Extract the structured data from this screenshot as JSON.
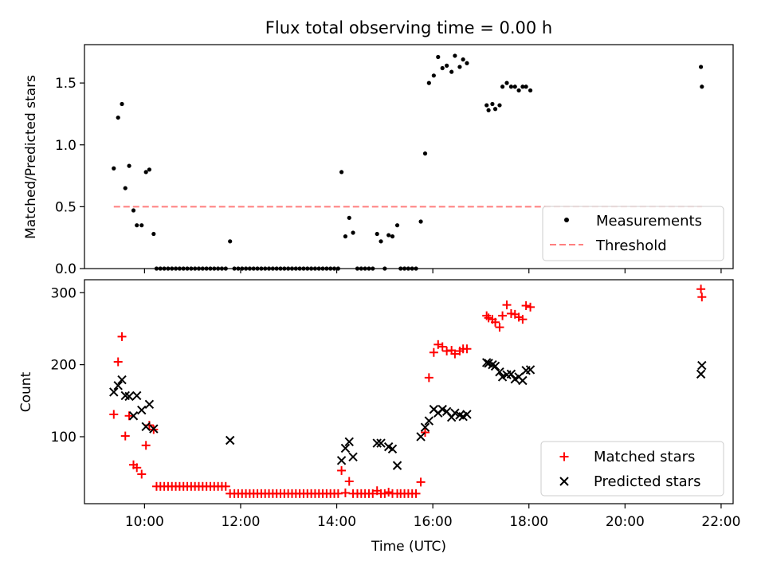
{
  "chart_data": [
    {
      "type": "scatter",
      "title": "Flux total observing time = 0.00 h",
      "xlabel": "",
      "ylabel": "Matched/Predicted stars",
      "xlim": [
        8.75,
        22.25
      ],
      "ylim": [
        0,
        1.81
      ],
      "yticks": [
        0.0,
        0.5,
        1.0,
        1.5
      ],
      "ytick_labels": [
        "0.0",
        "0.5",
        "1.0",
        "1.5"
      ],
      "xticks": [
        10,
        12,
        14,
        16,
        18,
        20,
        22
      ],
      "legend": {
        "position": "lower-right",
        "entries": [
          "Measurements",
          "Threshold"
        ]
      },
      "series": [
        {
          "name": "Measurements",
          "marker": "dot",
          "color": "#000000",
          "points": [
            [
              9.36,
              0.81
            ],
            [
              9.45,
              1.22
            ],
            [
              9.53,
              1.33
            ],
            [
              9.6,
              0.65
            ],
            [
              9.68,
              0.83
            ],
            [
              9.77,
              0.47
            ],
            [
              9.84,
              0.35
            ],
            [
              9.94,
              0.35
            ],
            [
              10.03,
              0.78
            ],
            [
              10.1,
              0.8
            ],
            [
              10.19,
              0.28
            ],
            [
              10.25,
              0.0
            ],
            [
              10.33,
              0.0
            ],
            [
              10.41,
              0.0
            ],
            [
              10.49,
              0.0
            ],
            [
              10.57,
              0.0
            ],
            [
              10.65,
              0.0
            ],
            [
              10.73,
              0.0
            ],
            [
              10.81,
              0.0
            ],
            [
              10.89,
              0.0
            ],
            [
              10.97,
              0.0
            ],
            [
              11.05,
              0.0
            ],
            [
              11.13,
              0.0
            ],
            [
              11.21,
              0.0
            ],
            [
              11.29,
              0.0
            ],
            [
              11.37,
              0.0
            ],
            [
              11.45,
              0.0
            ],
            [
              11.53,
              0.0
            ],
            [
              11.61,
              0.0
            ],
            [
              11.69,
              0.0
            ],
            [
              11.78,
              0.22
            ],
            [
              11.87,
              0.0
            ],
            [
              11.95,
              0.0
            ],
            [
              12.03,
              0.0
            ],
            [
              12.11,
              0.0
            ],
            [
              12.19,
              0.0
            ],
            [
              12.27,
              0.0
            ],
            [
              12.35,
              0.0
            ],
            [
              12.43,
              0.0
            ],
            [
              12.51,
              0.0
            ],
            [
              12.59,
              0.0
            ],
            [
              12.67,
              0.0
            ],
            [
              12.75,
              0.0
            ],
            [
              12.83,
              0.0
            ],
            [
              12.91,
              0.0
            ],
            [
              12.99,
              0.0
            ],
            [
              13.07,
              0.0
            ],
            [
              13.15,
              0.0
            ],
            [
              13.23,
              0.0
            ],
            [
              13.31,
              0.0
            ],
            [
              13.39,
              0.0
            ],
            [
              13.47,
              0.0
            ],
            [
              13.55,
              0.0
            ],
            [
              13.63,
              0.0
            ],
            [
              13.71,
              0.0
            ],
            [
              13.79,
              0.0
            ],
            [
              13.87,
              0.0
            ],
            [
              13.95,
              0.0
            ],
            [
              14.03,
              0.0
            ],
            [
              14.1,
              0.78
            ],
            [
              14.18,
              0.26
            ],
            [
              14.26,
              0.41
            ],
            [
              14.34,
              0.29
            ],
            [
              14.43,
              0.0
            ],
            [
              14.51,
              0.0
            ],
            [
              14.59,
              0.0
            ],
            [
              14.67,
              0.0
            ],
            [
              14.75,
              0.0
            ],
            [
              14.84,
              0.28
            ],
            [
              14.92,
              0.22
            ],
            [
              15.0,
              0.0
            ],
            [
              15.08,
              0.27
            ],
            [
              15.16,
              0.26
            ],
            [
              15.26,
              0.35
            ],
            [
              15.33,
              0.0
            ],
            [
              15.41,
              0.0
            ],
            [
              15.49,
              0.0
            ],
            [
              15.57,
              0.0
            ],
            [
              15.65,
              0.0
            ],
            [
              15.75,
              0.38
            ],
            [
              15.84,
              0.93
            ],
            [
              15.92,
              1.5
            ],
            [
              16.02,
              1.56
            ],
            [
              16.11,
              1.71
            ],
            [
              16.2,
              1.62
            ],
            [
              16.29,
              1.64
            ],
            [
              16.39,
              1.59
            ],
            [
              16.46,
              1.72
            ],
            [
              16.56,
              1.63
            ],
            [
              16.63,
              1.69
            ],
            [
              16.71,
              1.66
            ],
            [
              17.12,
              1.32
            ],
            [
              17.16,
              1.28
            ],
            [
              17.24,
              1.33
            ],
            [
              17.3,
              1.29
            ],
            [
              17.39,
              1.32
            ],
            [
              17.45,
              1.47
            ],
            [
              17.54,
              1.5
            ],
            [
              17.63,
              1.47
            ],
            [
              17.71,
              1.47
            ],
            [
              17.79,
              1.44
            ],
            [
              17.87,
              1.47
            ],
            [
              17.94,
              1.47
            ],
            [
              18.03,
              1.44
            ],
            [
              21.58,
              1.63
            ],
            [
              21.6,
              1.47
            ]
          ]
        },
        {
          "name": "Threshold",
          "type": "line",
          "style": "dashed",
          "color": "#ff7f7f",
          "x": [
            9.36,
            21.6
          ],
          "values": [
            0.5,
            0.5
          ]
        }
      ]
    },
    {
      "type": "scatter",
      "title": "",
      "xlabel": "Time (UTC)",
      "ylabel": "Count",
      "xlim": [
        8.75,
        22.25
      ],
      "ylim": [
        7,
        318
      ],
      "yticks": [
        100,
        200,
        300
      ],
      "ytick_labels": [
        "100",
        "200",
        "300"
      ],
      "xticks": [
        10,
        12,
        14,
        16,
        18,
        20,
        22
      ],
      "xtick_labels": [
        "10:00",
        "12:00",
        "14:00",
        "16:00",
        "18:00",
        "20:00",
        "22:00"
      ],
      "legend": {
        "position": "lower-right",
        "entries": [
          "Matched stars",
          "Predicted stars"
        ]
      },
      "series": [
        {
          "name": "Matched stars",
          "marker": "plus",
          "color": "#ff0000",
          "points": [
            [
              9.36,
              131
            ],
            [
              9.45,
              204
            ],
            [
              9.53,
              239
            ],
            [
              9.6,
              101
            ],
            [
              9.68,
              129
            ],
            [
              9.77,
              61
            ],
            [
              9.84,
              57
            ],
            [
              9.94,
              48
            ],
            [
              10.03,
              88
            ],
            [
              10.1,
              116
            ],
            [
              10.19,
              110
            ],
            [
              10.25,
              31
            ],
            [
              10.33,
              31
            ],
            [
              10.41,
              31
            ],
            [
              10.49,
              31
            ],
            [
              10.57,
              31
            ],
            [
              10.65,
              31
            ],
            [
              10.73,
              31
            ],
            [
              10.81,
              31
            ],
            [
              10.89,
              31
            ],
            [
              10.97,
              31
            ],
            [
              11.05,
              31
            ],
            [
              11.13,
              31
            ],
            [
              11.21,
              31
            ],
            [
              11.29,
              31
            ],
            [
              11.37,
              31
            ],
            [
              11.45,
              31
            ],
            [
              11.53,
              31
            ],
            [
              11.61,
              31
            ],
            [
              11.69,
              31
            ],
            [
              11.78,
              21
            ],
            [
              11.87,
              21
            ],
            [
              11.95,
              21
            ],
            [
              12.03,
              21
            ],
            [
              12.11,
              21
            ],
            [
              12.19,
              21
            ],
            [
              12.27,
              21
            ],
            [
              12.35,
              21
            ],
            [
              12.43,
              21
            ],
            [
              12.51,
              21
            ],
            [
              12.59,
              21
            ],
            [
              12.67,
              21
            ],
            [
              12.75,
              21
            ],
            [
              12.83,
              21
            ],
            [
              12.91,
              21
            ],
            [
              12.99,
              21
            ],
            [
              13.07,
              21
            ],
            [
              13.15,
              21
            ],
            [
              13.23,
              21
            ],
            [
              13.31,
              21
            ],
            [
              13.39,
              21
            ],
            [
              13.47,
              21
            ],
            [
              13.55,
              21
            ],
            [
              13.63,
              21
            ],
            [
              13.71,
              21
            ],
            [
              13.79,
              21
            ],
            [
              13.87,
              21
            ],
            [
              13.95,
              21
            ],
            [
              14.03,
              21
            ],
            [
              14.1,
              53
            ],
            [
              14.18,
              22
            ],
            [
              14.26,
              38
            ],
            [
              14.34,
              21
            ],
            [
              14.43,
              21
            ],
            [
              14.51,
              21
            ],
            [
              14.59,
              21
            ],
            [
              14.67,
              21
            ],
            [
              14.75,
              21
            ],
            [
              14.84,
              25
            ],
            [
              14.92,
              21
            ],
            [
              15.0,
              21
            ],
            [
              15.08,
              23
            ],
            [
              15.16,
              21
            ],
            [
              15.26,
              21
            ],
            [
              15.33,
              21
            ],
            [
              15.41,
              21
            ],
            [
              15.49,
              21
            ],
            [
              15.57,
              21
            ],
            [
              15.65,
              21
            ],
            [
              15.75,
              37
            ],
            [
              15.84,
              106
            ],
            [
              15.92,
              182
            ],
            [
              16.02,
              217
            ],
            [
              16.11,
              228
            ],
            [
              16.2,
              225
            ],
            [
              16.29,
              219
            ],
            [
              16.39,
              220
            ],
            [
              16.46,
              215
            ],
            [
              16.56,
              219
            ],
            [
              16.63,
              222
            ],
            [
              16.71,
              222
            ],
            [
              17.12,
              268
            ],
            [
              17.16,
              265
            ],
            [
              17.24,
              263
            ],
            [
              17.3,
              259
            ],
            [
              17.39,
              252
            ],
            [
              17.45,
              268
            ],
            [
              17.54,
              283
            ],
            [
              17.63,
              271
            ],
            [
              17.71,
              270
            ],
            [
              17.79,
              266
            ],
            [
              17.87,
              263
            ],
            [
              17.94,
              282
            ],
            [
              18.03,
              280
            ],
            [
              21.58,
              305
            ],
            [
              21.6,
              294
            ]
          ]
        },
        {
          "name": "Predicted stars",
          "marker": "x",
          "color": "#000000",
          "points": [
            [
              9.36,
              162
            ],
            [
              9.45,
              171
            ],
            [
              9.53,
              179
            ],
            [
              9.6,
              157
            ],
            [
              9.68,
              156
            ],
            [
              9.77,
              129
            ],
            [
              9.84,
              157
            ],
            [
              9.94,
              137
            ],
            [
              10.03,
              114
            ],
            [
              10.1,
              145
            ],
            [
              10.19,
              111
            ],
            [
              11.78,
              95
            ],
            [
              14.1,
              67
            ],
            [
              14.18,
              84
            ],
            [
              14.26,
              93
            ],
            [
              14.34,
              72
            ],
            [
              14.84,
              91
            ],
            [
              14.92,
              91
            ],
            [
              15.08,
              86
            ],
            [
              15.16,
              83
            ],
            [
              15.26,
              60
            ],
            [
              15.75,
              100
            ],
            [
              15.84,
              113
            ],
            [
              15.92,
              122
            ],
            [
              16.02,
              138
            ],
            [
              16.11,
              133
            ],
            [
              16.2,
              138
            ],
            [
              16.29,
              135
            ],
            [
              16.39,
              127
            ],
            [
              16.46,
              133
            ],
            [
              16.56,
              130
            ],
            [
              16.63,
              128
            ],
            [
              16.71,
              131
            ],
            [
              17.12,
              203
            ],
            [
              17.16,
              202
            ],
            [
              17.24,
              200
            ],
            [
              17.3,
              198
            ],
            [
              17.39,
              190
            ],
            [
              17.45,
              183
            ],
            [
              17.54,
              186
            ],
            [
              17.63,
              187
            ],
            [
              17.71,
              180
            ],
            [
              17.79,
              183
            ],
            [
              17.87,
              178
            ],
            [
              17.94,
              192
            ],
            [
              18.03,
              193
            ],
            [
              21.58,
              187
            ],
            [
              21.6,
              199
            ]
          ]
        }
      ]
    }
  ]
}
